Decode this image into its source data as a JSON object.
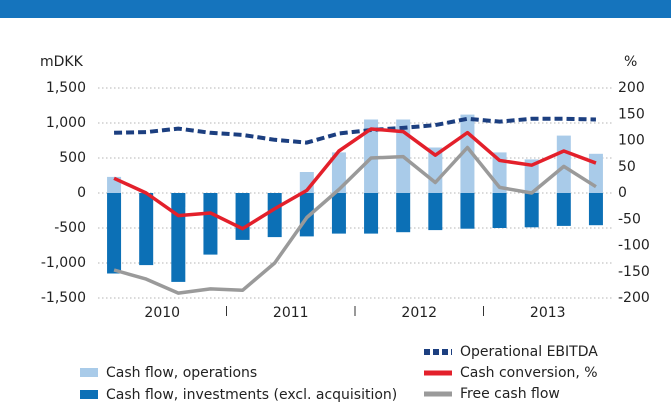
{
  "chart_data": {
    "type": "bar-line",
    "y_label": "mDKK",
    "y2_label": "%",
    "categories": [
      null,
      null,
      null,
      null,
      null,
      null,
      null,
      null,
      null,
      null,
      null,
      null,
      null,
      null,
      null,
      null
    ],
    "group_labels": [
      "2010",
      "2011",
      "2012",
      "2013"
    ],
    "ylim": [
      -1500,
      1500
    ],
    "yticks": [
      {
        "value": -1500,
        "label": "-1,500"
      },
      {
        "value": -1000,
        "label": "-1,000"
      },
      -500,
      0,
      500,
      {
        "value": 1000,
        "label": "1,000"
      },
      {
        "value": 1500,
        "label": "1,500"
      }
    ],
    "y2lim": [
      -200,
      200
    ],
    "y2ticks": [
      -200,
      -150,
      -100,
      -50,
      0,
      50,
      100,
      150,
      200
    ],
    "grid": true,
    "series": [
      {
        "name": "Cash flow, operations",
        "kind": "bar",
        "color": "#a9cbe9",
        "values": [
          230,
          0,
          -200,
          0,
          0,
          0,
          300,
          580,
          1050,
          1050,
          650,
          1120,
          580,
          480,
          820,
          560
        ]
      },
      {
        "name": "Cash flow, investments (excl. acquisition)",
        "kind": "bar",
        "color": "#0c70b6",
        "values": [
          -1150,
          -1030,
          -1270,
          -880,
          -670,
          -630,
          -620,
          -580,
          -580,
          -560,
          -530,
          -510,
          -500,
          -490,
          -470,
          -460
        ]
      },
      {
        "name": "Operational EBITDA",
        "kind": "line",
        "dash": true,
        "color": "#1c3f80",
        "values": [
          860,
          870,
          920,
          860,
          830,
          760,
          720,
          850,
          900,
          930,
          970,
          1060,
          1020,
          1060,
          1060,
          1050
        ]
      },
      {
        "name": "Cash conversion, %",
        "kind": "line",
        "axis": "y2",
        "color": "#e3202b",
        "values": [
          28,
          0,
          -43,
          -38,
          -68,
          -30,
          5,
          80,
          122,
          117,
          72,
          115,
          62,
          53,
          80,
          57
        ]
      },
      {
        "name": "Free cash flow",
        "kind": "line",
        "color": "#9a9a9a",
        "values": [
          -1100,
          -1230,
          -1430,
          -1370,
          -1390,
          -1000,
          -350,
          50,
          500,
          520,
          150,
          650,
          80,
          0,
          380,
          90
        ]
      }
    ]
  }
}
